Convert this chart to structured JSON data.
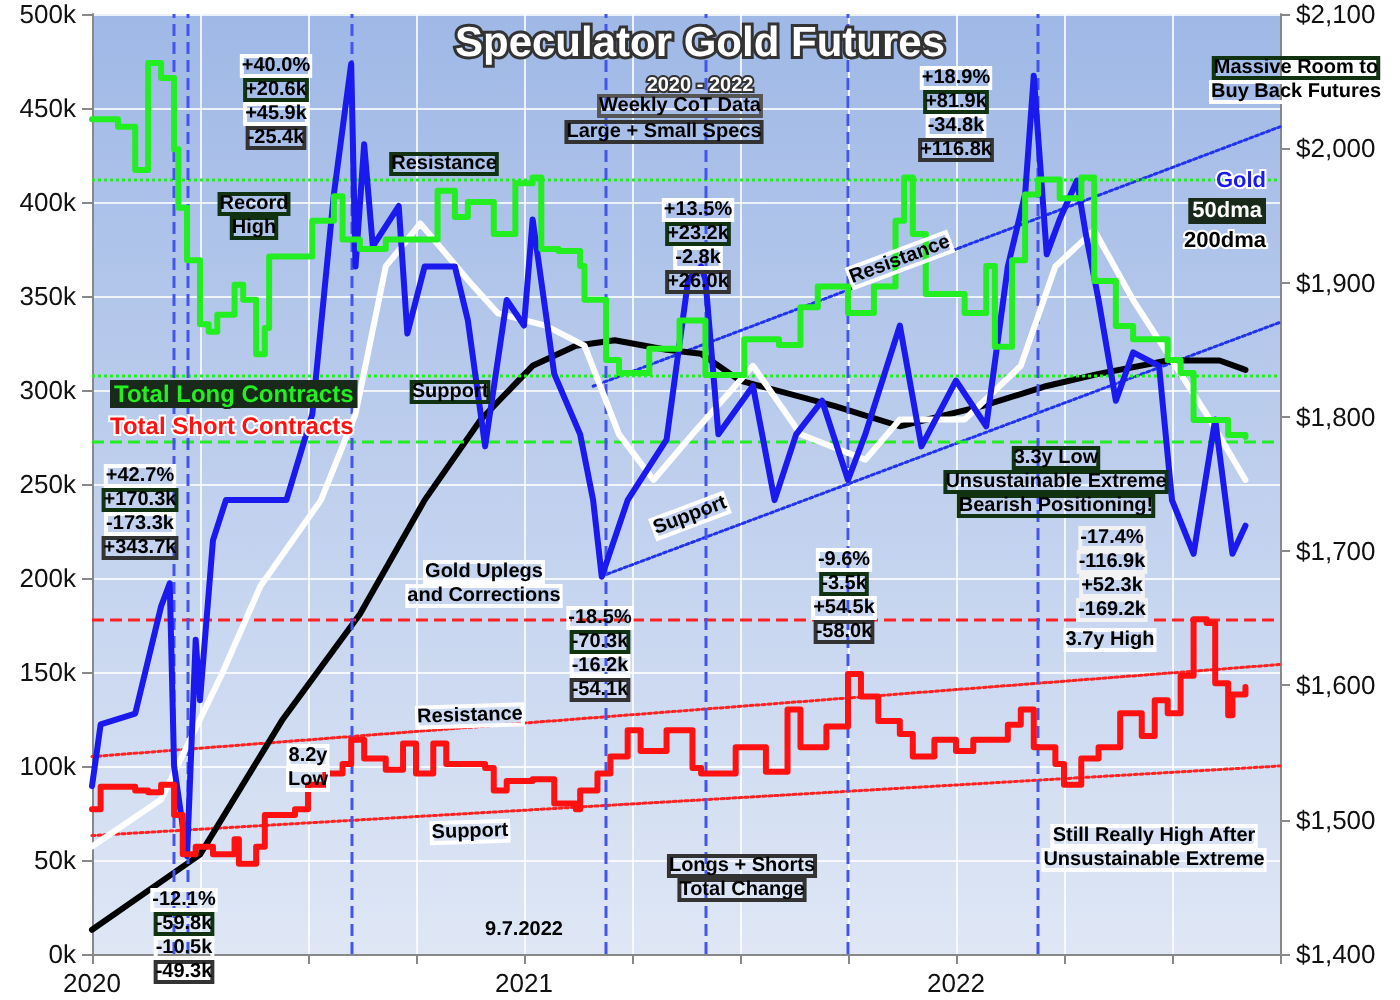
{
  "chart_data": {
    "type": "line",
    "title": "Speculator Gold Futures",
    "subtitle": "2020 - 2022",
    "xlim": [
      2020,
      2022.75
    ],
    "xticks": [
      2020,
      {
        "value": 2020.25,
        "label": null
      },
      {
        "value": 2020.5,
        "label": null
      },
      {
        "value": 2020.75,
        "label": null
      },
      2021,
      {
        "value": 2021.25,
        "label": null
      },
      {
        "value": 2021.5,
        "label": null
      },
      {
        "value": 2021.75,
        "label": null
      },
      2022,
      {
        "value": 2022.25,
        "label": null
      },
      {
        "value": 2022.5,
        "label": null
      },
      {
        "value": 2022.75,
        "label": null
      }
    ],
    "ylim": [
      0,
      500
    ],
    "yticks": [
      {
        "value": 0,
        "label": "0k"
      },
      {
        "value": 50,
        "label": "50k"
      },
      {
        "value": 100,
        "label": "100k"
      },
      {
        "value": 150,
        "label": "150k"
      },
      {
        "value": 200,
        "label": "200k"
      },
      {
        "value": 250,
        "label": "250k"
      },
      {
        "value": 300,
        "label": "300k"
      },
      {
        "value": 350,
        "label": "350k"
      },
      {
        "value": 400,
        "label": "400k"
      },
      {
        "value": 450,
        "label": "450k"
      },
      {
        "value": 500,
        "label": "500k"
      }
    ],
    "y2lim": [
      1400,
      2100
    ],
    "y2ticks": [
      {
        "value": 1400,
        "label": "$1,400"
      },
      {
        "value": 1500,
        "label": "$1,500"
      },
      {
        "value": 1600,
        "label": "$1,600"
      },
      {
        "value": 1700,
        "label": "$1,700"
      },
      {
        "value": 1800,
        "label": "$1,800"
      },
      {
        "value": 1900,
        "label": "$1,900"
      },
      {
        "value": 2000,
        "label": "$2,000"
      },
      {
        "value": 2100,
        "label": "$2,100"
      }
    ],
    "grid": true,
    "legend": "right",
    "marker": "none",
    "line_style": "solid",
    "series": [
      {
        "name": "Total Long Contracts",
        "type": "step",
        "color": "#22ee22",
        "x": [
          2020.0,
          2020.06,
          2020.1,
          2020.13,
          2020.16,
          2020.19,
          2020.2,
          2020.22,
          2020.25,
          2020.27,
          2020.29,
          2020.33,
          2020.35,
          2020.38,
          2020.4,
          2020.41,
          2020.51,
          2020.56,
          2020.58,
          2020.62,
          2020.68,
          2020.8,
          2020.84,
          2020.87,
          2020.93,
          2020.98,
          2021.02,
          2021.04,
          2021.08,
          2021.13,
          2021.14,
          2021.19,
          2021.22,
          2021.29,
          2021.36,
          2021.42,
          2021.51,
          2021.59,
          2021.64,
          2021.68,
          2021.75,
          2021.81,
          2021.86,
          2021.88,
          2021.9,
          2021.93,
          2022.0,
          2022.02,
          2022.07,
          2022.09,
          2022.13,
          2022.16,
          2022.19,
          2022.24,
          2022.29,
          2022.32,
          2022.37,
          2022.41,
          2022.49,
          2022.52,
          2022.55,
          2022.6,
          2022.63,
          2022.67
        ],
        "values": [
          444,
          440,
          417,
          474,
          466,
          428,
          397,
          369,
          335,
          331,
          340,
          356,
          348,
          319,
          333,
          371,
          390,
          403,
          380,
          375,
          380,
          406,
          392,
          400,
          383,
          410,
          413,
          375,
          374,
          366,
          348,
          316,
          309,
          322,
          337,
          308,
          327,
          324,
          344,
          355,
          341,
          355,
          390,
          413,
          383,
          351,
          351,
          341,
          366,
          323,
          369,
          404,
          412,
          402,
          413,
          358,
          334,
          327,
          316,
          309,
          284,
          284,
          276,
          275
        ]
      },
      {
        "name": "Total Short Contracts",
        "type": "step",
        "color": "#ff1111",
        "x": [
          2020.0,
          2020.02,
          2020.1,
          2020.13,
          2020.16,
          2020.19,
          2020.21,
          2020.24,
          2020.28,
          2020.33,
          2020.34,
          2020.38,
          2020.4,
          2020.47,
          2020.5,
          2020.54,
          2020.58,
          2020.6,
          2020.63,
          2020.68,
          2020.72,
          2020.75,
          2020.79,
          2020.82,
          2020.91,
          2020.93,
          2020.96,
          2021.02,
          2021.07,
          2021.12,
          2021.13,
          2021.17,
          2021.2,
          2021.24,
          2021.27,
          2021.33,
          2021.39,
          2021.41,
          2021.49,
          2021.56,
          2021.61,
          2021.64,
          2021.7,
          2021.75,
          2021.78,
          2021.82,
          2021.87,
          2021.9,
          2021.95,
          2022.0,
          2022.04,
          2022.12,
          2022.15,
          2022.18,
          2022.23,
          2022.25,
          2022.29,
          2022.33,
          2022.37,
          2022.38,
          2022.43,
          2022.46,
          2022.49,
          2022.52,
          2022.55,
          2022.58,
          2022.6,
          2022.63,
          2022.64,
          2022.67
        ],
        "values": [
          77,
          89,
          87,
          86,
          90,
          74,
          53,
          57,
          53,
          61,
          48,
          57,
          74,
          77,
          90,
          96,
          101,
          114,
          104,
          98,
          112,
          96,
          112,
          101,
          99,
          87,
          92,
          93,
          80,
          77,
          87,
          96,
          105,
          119,
          108,
          119,
          99,
          96,
          110,
          97,
          130,
          110,
          121,
          149,
          137,
          124,
          117,
          105,
          114,
          108,
          114,
          122,
          130,
          110,
          101,
          90,
          104,
          110,
          110,
          128,
          116,
          135,
          128,
          148,
          178,
          176,
          144,
          127,
          138,
          142
        ]
      },
      {
        "name": "Gold",
        "axis": "y2",
        "color": "#1a1aee",
        "x": [
          2020.0,
          2020.02,
          2020.1,
          2020.16,
          2020.18,
          2020.19,
          2020.22,
          2020.24,
          2020.25,
          2020.28,
          2020.31,
          2020.45,
          2020.51,
          2020.56,
          2020.6,
          2020.61,
          2020.63,
          2020.65,
          2020.71,
          2020.73,
          2020.77,
          2020.84,
          2020.87,
          2020.91,
          2020.96,
          2021.0,
          2021.02,
          2021.07,
          2021.13,
          2021.16,
          2021.18,
          2021.24,
          2021.27,
          2021.33,
          2021.38,
          2021.41,
          2021.42,
          2021.45,
          2021.53,
          2021.58,
          2021.63,
          2021.69,
          2021.75,
          2021.79,
          2021.87,
          2021.92,
          2022.0,
          2022.07,
          2022.12,
          2022.16,
          2022.18,
          2022.21,
          2022.24,
          2022.28,
          2022.3,
          2022.33,
          2022.37,
          2022.41,
          2022.47,
          2022.5,
          2022.55,
          2022.6,
          2022.64,
          2022.67
        ],
        "values": [
          1525,
          1571,
          1579,
          1659,
          1676,
          1540,
          1473,
          1634,
          1589,
          1708,
          1738,
          1738,
          1802,
          1966,
          2063,
          1912,
          2003,
          1927,
          1957,
          1862,
          1912,
          1912,
          1872,
          1778,
          1887,
          1868,
          1947,
          1832,
          1787,
          1738,
          1681,
          1738,
          1753,
          1783,
          1902,
          1912,
          1902,
          1787,
          1823,
          1738,
          1787,
          1812,
          1753,
          1787,
          1868,
          1778,
          1827,
          1793,
          1912,
          1966,
          2054,
          1921,
          1947,
          1976,
          1937,
          1887,
          1812,
          1848,
          1838,
          1738,
          1698,
          1798,
          1698,
          1719
        ]
      },
      {
        "name": "50dma",
        "axis": "y2",
        "color": "#ffffff",
        "x": [
          2020.0,
          2020.16,
          2020.3,
          2020.39,
          2020.53,
          2020.61,
          2020.68,
          2020.76,
          2020.87,
          2020.94,
          2021.05,
          2021.14,
          2021.22,
          2021.3,
          2021.39,
          2021.53,
          2021.64,
          2021.79,
          2021.87,
          2022.02,
          2022.15,
          2022.23,
          2022.32,
          2022.41,
          2022.49,
          2022.58,
          2022.67
        ],
        "values": [
          1480,
          1515,
          1608,
          1674,
          1738,
          1802,
          1912,
          1944,
          1902,
          1877,
          1868,
          1853,
          1787,
          1753,
          1787,
          1838,
          1787,
          1768,
          1798,
          1798,
          1838,
          1912,
          1939,
          1887,
          1847,
          1802,
          1753
        ]
      },
      {
        "name": "200dma",
        "axis": "y2",
        "color": "#000000",
        "x": [
          2020.0,
          2020.25,
          2020.44,
          2020.62,
          2020.77,
          2020.9,
          2021.02,
          2021.12,
          2021.21,
          2021.33,
          2021.41,
          2021.5,
          2021.72,
          2021.87,
          2022.06,
          2022.21,
          2022.33,
          2022.49,
          2022.61,
          2022.67
        ],
        "values": [
          1418,
          1474,
          1574,
          1653,
          1738,
          1798,
          1838,
          1853,
          1857,
          1850,
          1847,
          1827,
          1808,
          1793,
          1808,
          1823,
          1832,
          1842,
          1842,
          1835
        ]
      },
      {
        "type": "line",
        "line_style": "dotted",
        "color": "#2233ee",
        "x": [
          2021.16,
          2022.75
        ],
        "values": [
          302,
          440
        ]
      },
      {
        "type": "line",
        "line_style": "dotted",
        "color": "#2233ee",
        "x": [
          2021.18,
          2022.75
        ],
        "values": [
          201,
          336
        ]
      },
      {
        "type": "line",
        "line_style": "dotted",
        "color": "#ff2222",
        "x": [
          2020.0,
          2022.75
        ],
        "values": [
          105,
          154
        ]
      },
      {
        "type": "line",
        "line_style": "dotted",
        "color": "#ff2222",
        "x": [
          2020.0,
          2022.75
        ],
        "values": [
          63,
          100
        ]
      }
    ],
    "ref_lines": [
      {
        "axis": "y",
        "value": 412,
        "color": "#22ee22",
        "line_style": "dotted"
      },
      {
        "axis": "y",
        "value": 308,
        "color": "#22ee22",
        "line_style": "dotted"
      },
      {
        "axis": "y",
        "value": 273,
        "color": "#22ee22",
        "line_style": "dashed"
      },
      {
        "axis": "y",
        "value": 178,
        "color": "#ff2222",
        "line_style": "dashed"
      },
      {
        "axis": "x",
        "value": 2020.19,
        "color": "#4455ee",
        "line_style": "dashed"
      },
      {
        "axis": "x",
        "value": 2020.22,
        "color": "#4455ee",
        "line_style": "dashed"
      },
      {
        "axis": "x",
        "value": 2020.6,
        "color": "#4455ee",
        "line_style": "dashed"
      },
      {
        "axis": "x",
        "value": 2021.19,
        "color": "#4455ee",
        "line_style": "dashed"
      },
      {
        "axis": "x",
        "value": 2021.42,
        "color": "#4455ee",
        "line_style": "dashed"
      },
      {
        "axis": "x",
        "value": 2021.75,
        "color": "#4455ee",
        "line_style": "dashed"
      },
      {
        "axis": "x",
        "value": 2022.19,
        "color": "#4455ee",
        "line_style": "dashed"
      }
    ],
    "annotations": [
      "+40.0%\n+20.6k\n+45.9k\n-25.4k",
      "+42.7%\n+170.3k\n-173.3k\n+343.7k",
      "-12.1%\n-59.8k\n-10.5k\n-49.3k",
      "-18.5%\n-70.3k\n-16.2k\n-54.1k",
      "+13.5%\n+23.2k\n-2.8k\n+26.0k",
      "-9.6%\n-3.5k\n+54.5k\n-58.0k",
      "+18.9%\n+81.9k\n-34.8k\n+116.8k",
      "-17.4%\n-116.9k\n+52.3k\n-169.2k",
      "Record\nHigh",
      "Resistance",
      "Support",
      "Resistance",
      "Support",
      "Gold Uplegs\nand Corrections",
      "Resistance",
      "Support",
      "8.2y\nLow",
      "Longs + Shorts\nTotal Change",
      "3.3y Low\nUnsustainable Extreme\nBearish Positioning!",
      "3.7y High",
      "Still Really High After\nUnsustainable Extreme",
      "Massive Room to\nBuy Back Futures",
      "Weekly CoT Data",
      "Large + Small Specs",
      "9.7.2022"
    ]
  }
}
